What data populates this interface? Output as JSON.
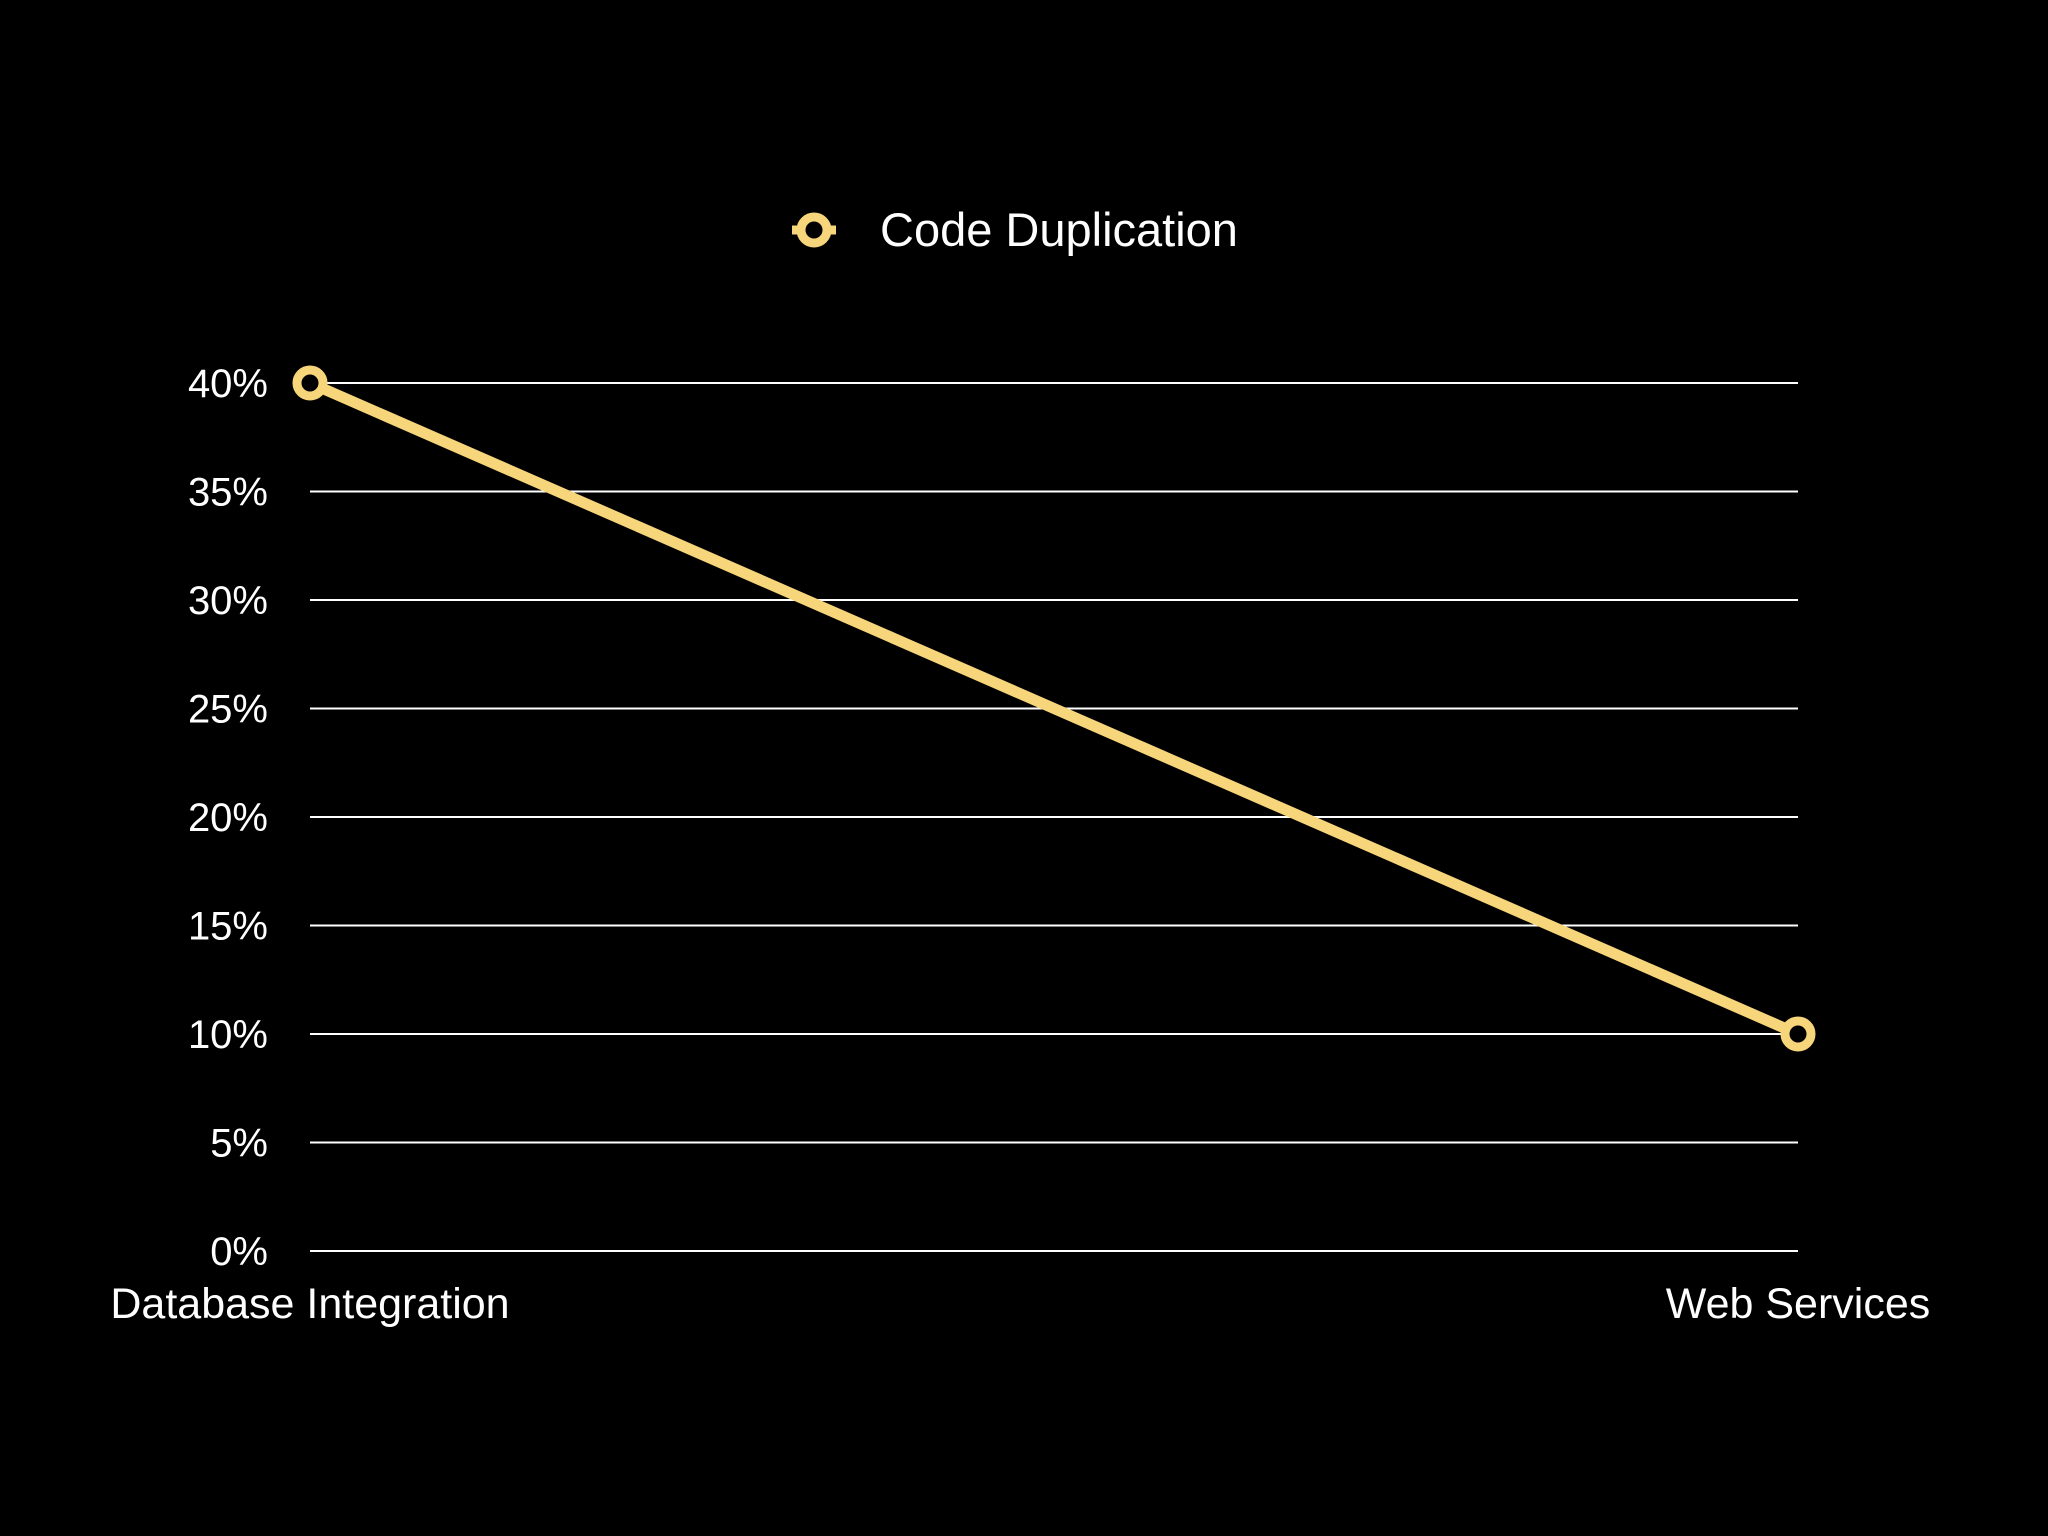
{
  "chart_data": {
    "type": "line",
    "title": "",
    "xlabel": "",
    "ylabel": "",
    "categories": [
      "Database Integration",
      "Web Services"
    ],
    "series": [
      {
        "name": "Code Duplication",
        "values": [
          40,
          10
        ],
        "color": "#f7d57a"
      }
    ],
    "ylim": [
      0,
      40
    ],
    "yticks": [
      0,
      5,
      10,
      15,
      20,
      25,
      30,
      35,
      40
    ],
    "ytick_format": "%",
    "grid": true,
    "legend_position": "top-center",
    "background": "#000000",
    "grid_color": "#ffffff"
  }
}
